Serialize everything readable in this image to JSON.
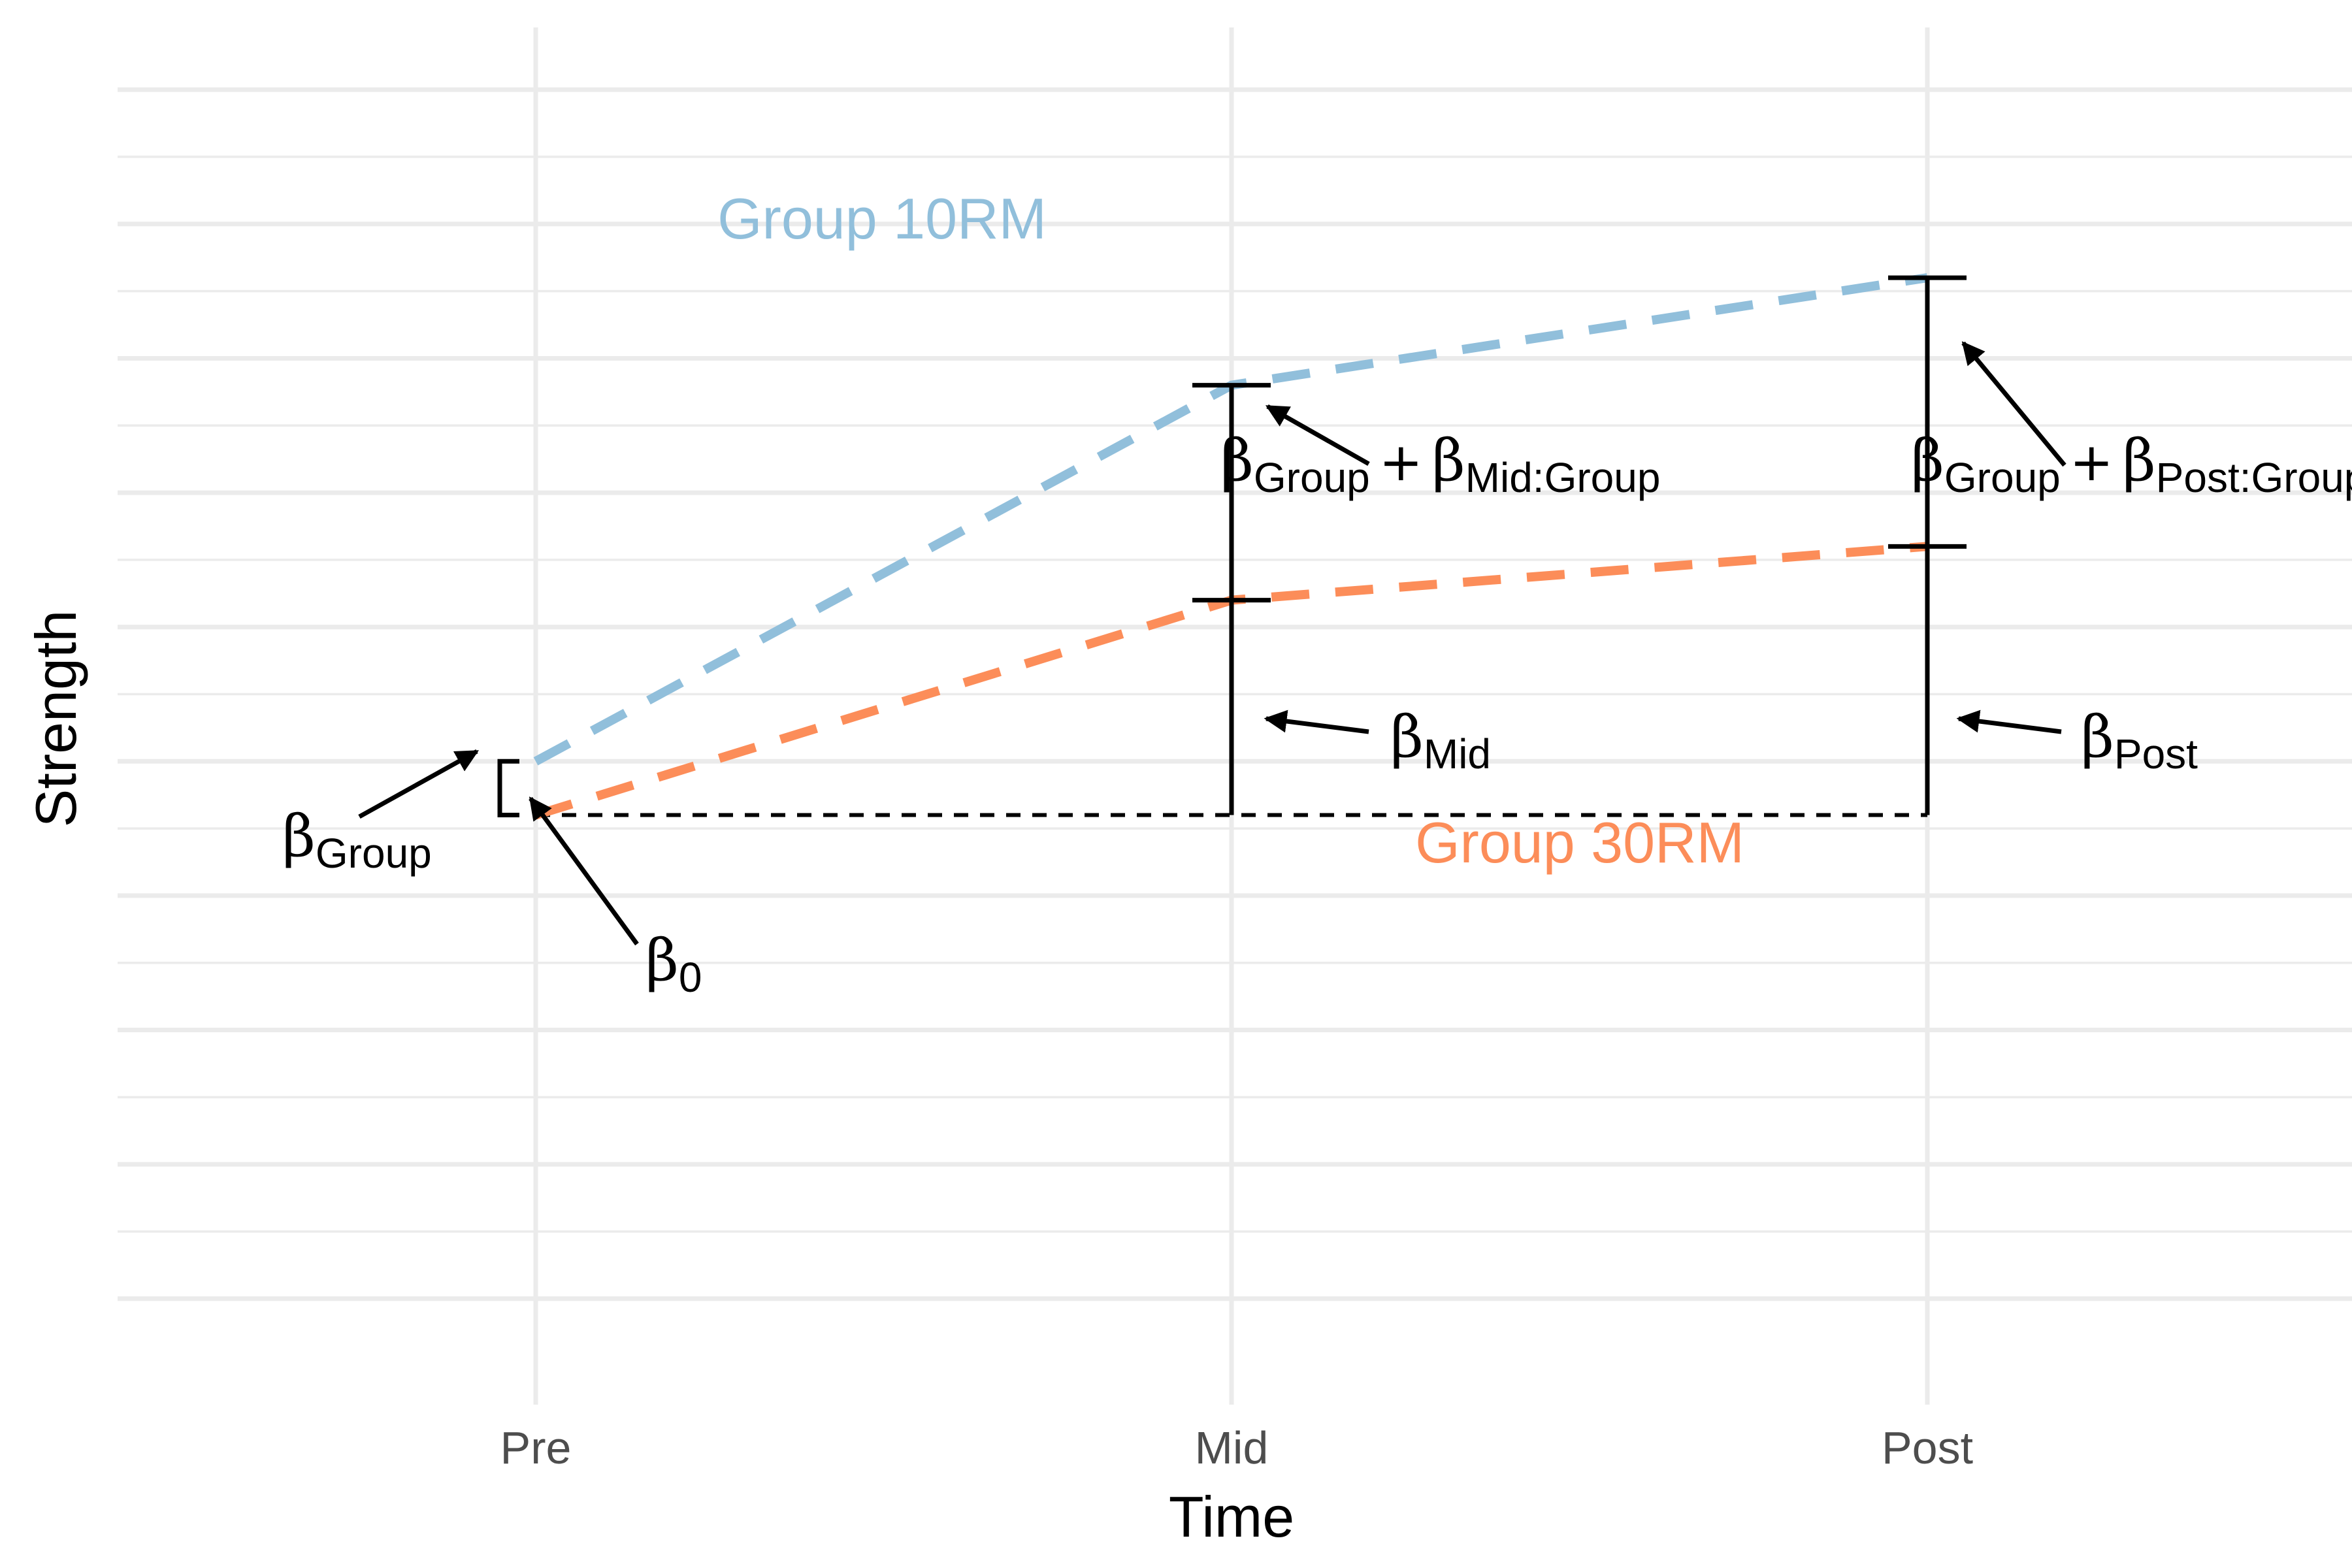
{
  "chart_data": {
    "type": "line",
    "title": "",
    "xlabel": "Time",
    "ylabel": "Strength",
    "categories": [
      "Pre",
      "Mid",
      "Post"
    ],
    "grid": true,
    "series": [
      {
        "name": "Group 10RM",
        "values": [
          3.0,
          5.8,
          6.6
        ],
        "color": "#91bfdb",
        "dash": "dashed"
      },
      {
        "name": "Group 30RM",
        "values": [
          2.6,
          4.2,
          4.6
        ],
        "color": "#fc8d59",
        "dash": "dashed"
      }
    ],
    "reference_line": {
      "y": 2.6,
      "color": "#000000",
      "dash": "dashed"
    },
    "y_gridlines": [
      -1,
      0,
      1,
      2,
      3,
      4,
      5,
      6,
      7,
      8
    ],
    "ylim": [
      -1.4,
      8.4
    ],
    "annotations": {
      "b0": {
        "sym": "β",
        "sub": "0"
      },
      "bGroup": {
        "sym": "β",
        "sub": "Group"
      },
      "bMid": {
        "sym": "β",
        "sub": "Mid"
      },
      "bPost": {
        "sym": "β",
        "sub": "Post"
      },
      "bMidGroup": {
        "sym1": "β",
        "sub1": "Group",
        "plus": "+",
        "sym2": "β",
        "sub2": "Mid:Group"
      },
      "bPostGroup": {
        "sym1": "β",
        "sub1": "Group",
        "plus": "+",
        "sym2": "β",
        "sub2": "Post:Group"
      }
    }
  }
}
